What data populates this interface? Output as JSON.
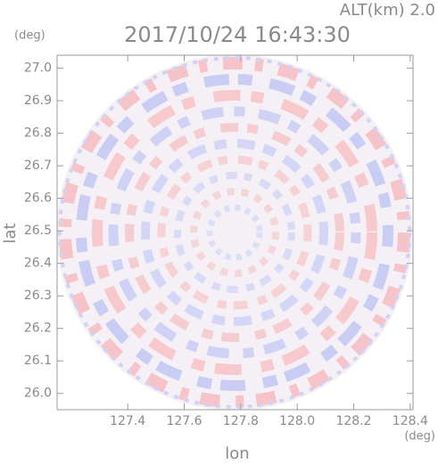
{
  "chart_data": {
    "type": "radar-ppi",
    "title": "2017/10/24 16:43:30",
    "annotation": "ALT(km) 2.0",
    "x_label": "lon",
    "x_unit": "(deg)",
    "y_label": "lat",
    "y_unit": "(deg)",
    "xlim": [
      127.15,
      128.41
    ],
    "xticks": [
      {
        "value": 127.4,
        "label": "127.4"
      },
      {
        "value": 127.6,
        "label": "127.6"
      },
      {
        "value": 127.8,
        "label": "127.8"
      },
      {
        "value": 128.0,
        "label": "128.0"
      },
      {
        "value": 128.2,
        "label": "128.2"
      },
      {
        "value": 128.4,
        "label": "128.4"
      }
    ],
    "ylim": [
      25.95,
      27.04
    ],
    "yticks": [
      {
        "value": 26.0,
        "label": "26.0"
      },
      26.1,
      26.2,
      26.3,
      26.4,
      26.5,
      26.6,
      26.7,
      26.8,
      26.9,
      {
        "value": 27.0,
        "label": "27.0"
      }
    ]
  }
}
